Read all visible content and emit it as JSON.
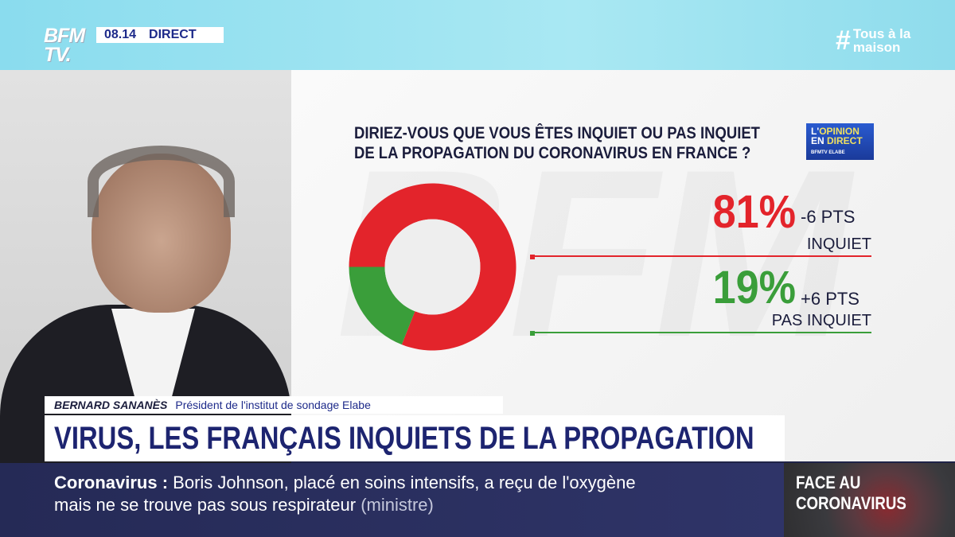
{
  "header": {
    "logo": "BFM TV.",
    "time": "08.14",
    "live": "DIRECT",
    "hashtag_symbol": "#",
    "hashtag_line1": "Tous à la",
    "hashtag_line2": "maison"
  },
  "poll": {
    "question_line1": "DIRIEZ-VOUS QUE VOUS ÊTES INQUIET OU PAS INQUIET",
    "question_line2": "DE LA PROPAGATION DU CORONAVIRUS EN FRANCE ?",
    "badge_line1_a": "L'",
    "badge_line1_b": "OPINION",
    "badge_line2_a": "EN ",
    "badge_line2_b": "DIRECT",
    "badge_small": "BFMTV ELABE"
  },
  "chart_data": {
    "type": "pie",
    "donut": true,
    "title": "DIRIEZ-VOUS QUE VOUS ÊTES INQUIET OU PAS INQUIET DE LA PROPAGATION DU CORONAVIRUS EN FRANCE ?",
    "categories": [
      "INQUIET",
      "PAS INQUIET"
    ],
    "values": [
      81,
      19
    ],
    "value_labels": [
      "81%",
      "19%"
    ],
    "changes": [
      "-6 PTS",
      "+6 PTS"
    ],
    "colors": [
      "#e3242b",
      "#3a9e3a"
    ]
  },
  "lower_third": {
    "name": "BERNARD SANANÈS",
    "role": "Président de l'institut de sondage Elabe",
    "headline": "VIRUS, LES FRANÇAIS INQUIETS DE LA PROPAGATION"
  },
  "ticker": {
    "topic": "Coronavirus :",
    "line1": "Boris Johnson, placé en soins intensifs, a reçu de l'oxygène",
    "line2": "mais ne se trouve pas sous respirateur",
    "source": "(ministre)"
  },
  "program": {
    "line1": "FACE AU",
    "line2": "CORONAVIRUS"
  }
}
